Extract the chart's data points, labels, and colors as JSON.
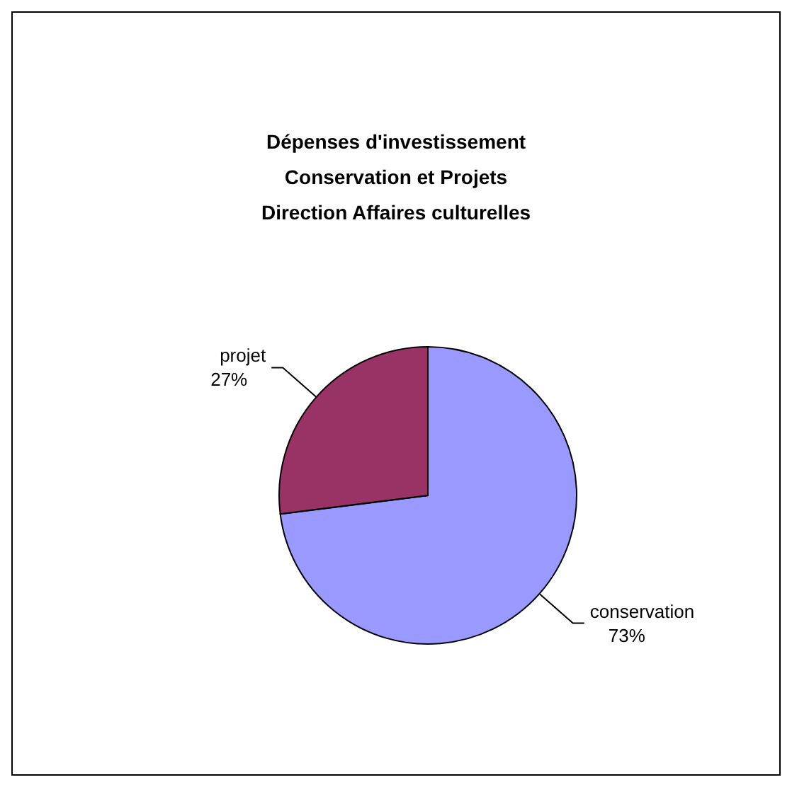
{
  "chart_data": {
    "type": "pie",
    "title": "Dépenses d'investissement\nConservation et Projets\nDirection Affaires culturelles",
    "categories": [
      "conservation",
      "projet"
    ],
    "values": [
      73,
      27
    ],
    "colors": [
      "#9999ff",
      "#993366"
    ],
    "data_labels": true,
    "value_labels": [
      "73%",
      "27%"
    ]
  }
}
